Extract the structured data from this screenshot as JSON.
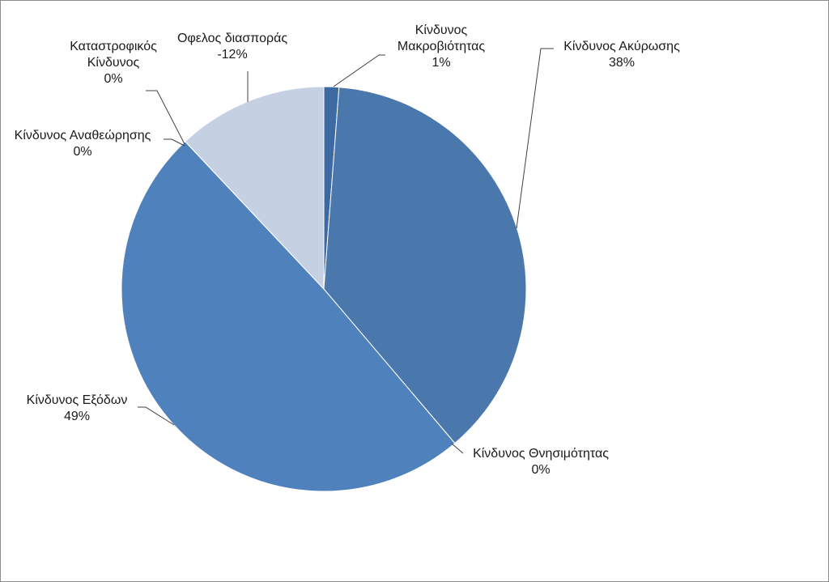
{
  "chart_data": {
    "type": "pie",
    "title": "",
    "slices": [
      {
        "label": "Κίνδυνος Μακροβιότητας",
        "label_lines": [
          "Κίνδυνος",
          "Μακροβιότητας"
        ],
        "percent_label": "1%",
        "value": 1.2,
        "color": "#3e6aa3"
      },
      {
        "label": "Κίνδυνος Ακύρωσης",
        "label_lines": [
          "Κίνδυνος Ακύρωσης"
        ],
        "percent_label": "38%",
        "value": 37.6,
        "color": "#4a78ad"
      },
      {
        "label": "Κίνδυνος Θνησιμότητας",
        "label_lines": [
          "Κίνδυνος Θνησιμότητας"
        ],
        "percent_label": "0%",
        "value": 0.01,
        "color": "#4a78ad"
      },
      {
        "label": "Κίνδυνος Εξόδων",
        "label_lines": [
          "Κίνδυνος Εξόδων"
        ],
        "percent_label": "49%",
        "value": 49.2,
        "color": "#4f81bd"
      },
      {
        "label": "Κίνδυνος Αναθεώρησης",
        "label_lines": [
          "Κίνδυνος Αναθεώρησης"
        ],
        "percent_label": "0%",
        "value": 0.01,
        "color": "#4f81bd"
      },
      {
        "label": "Καταστροφικός Κίνδυνος",
        "label_lines": [
          "Καταστροφικός",
          "Κίνδυνος"
        ],
        "percent_label": "0%",
        "value": 0.01,
        "color": "#7a9cc8"
      },
      {
        "label": "Οφελος διασποράς",
        "label_lines": [
          "Οφελος διασποράς"
        ],
        "percent_label": "-12%",
        "value": 12.0,
        "color": "#c5d0e3"
      }
    ]
  }
}
